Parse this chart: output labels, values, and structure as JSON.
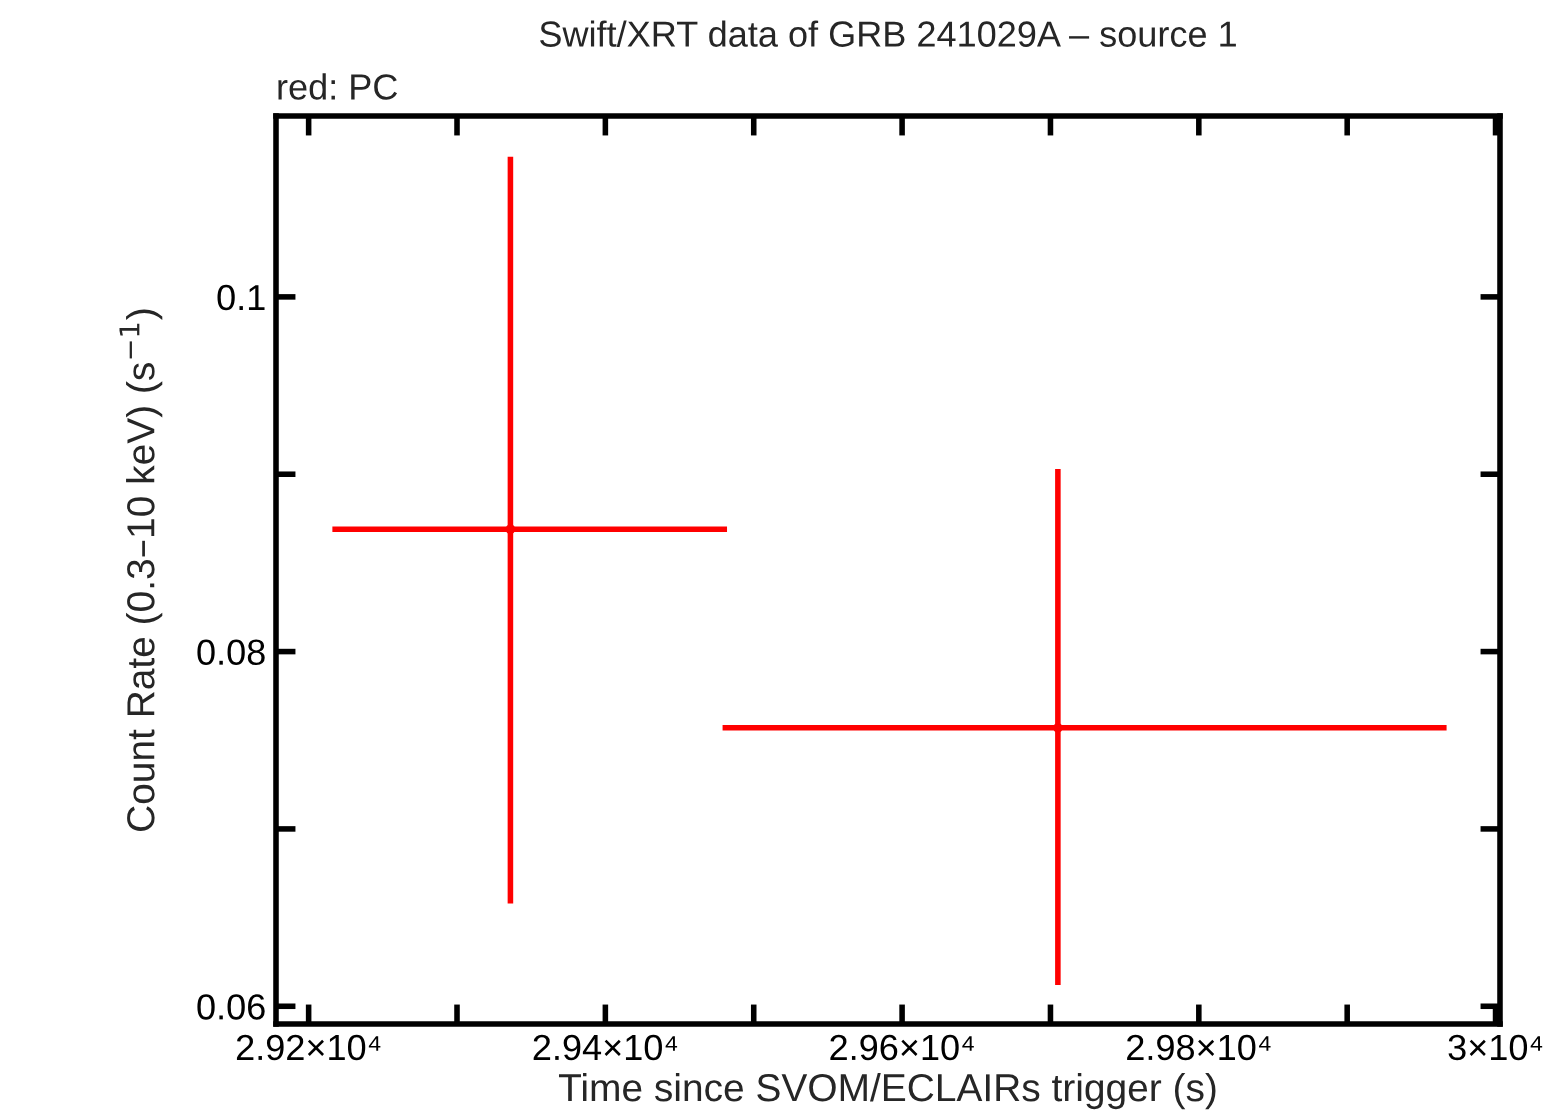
{
  "chart_data": {
    "type": "scatter",
    "title": "Swift/XRT data of GRB 241029A – source 1",
    "xlabel": "Time since SVOM/ECLAIRs trigger (s)",
    "ylabel": "Count Rate (0.3–10 keV) (s$^{−1}$)",
    "annotations": [
      "red: PC"
    ],
    "grid": false,
    "legend": false,
    "series": [
      {
        "color": "#ff0000",
        "x": [
          29336,
          29705
        ],
        "values": [
          0.0869,
          0.0757
        ],
        "xerrors": [
          [
            29216,
            29482
          ],
          [
            29479,
            29967
          ]
        ],
        "errors": [
          [
            0.0658,
            0.1079
          ],
          [
            0.0612,
            0.0903
          ]
        ]
      }
    ],
    "xlim": [
      29178,
      30003
    ],
    "ylim": [
      0.059,
      0.1102
    ],
    "xticks": [
      {
        "value": 29200,
        "label": "2.92×10⁴"
      },
      {
        "value": 29300,
        "label": null
      },
      {
        "value": 29400,
        "label": "2.94×10⁴"
      },
      {
        "value": 29500,
        "label": null
      },
      {
        "value": 29600,
        "label": "2.96×10⁴"
      },
      {
        "value": 29700,
        "label": null
      },
      {
        "value": 29800,
        "label": "2.98×10⁴"
      },
      {
        "value": 29900,
        "label": null
      },
      {
        "value": 30000,
        "label": "3×10⁴"
      }
    ],
    "yticks": [
      {
        "value": 0.06,
        "label": "0.06"
      },
      {
        "value": 0.07,
        "label": null
      },
      {
        "value": 0.08,
        "label": "0.08"
      },
      {
        "value": 0.09,
        "label": null
      },
      {
        "value": 0.1,
        "label": "0.1"
      }
    ]
  }
}
